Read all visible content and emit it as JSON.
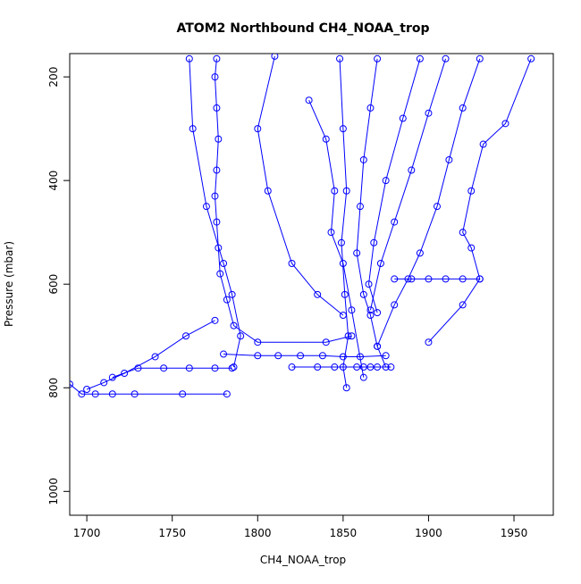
{
  "chart_data": {
    "type": "line",
    "title": "ATOM2 Northbound CH4_NOAA_trop",
    "x_label": "CH4_NOAA_trop",
    "y_label": "Pressure (mbar)",
    "color": "#0000ff",
    "markers": true,
    "xlim": [
      1690,
      1973
    ],
    "xticks": [
      1700,
      1750,
      1800,
      1850,
      1900,
      1950
    ],
    "ylim": [
      1046,
      155
    ],
    "yticks": [
      200,
      400,
      600,
      800,
      1000
    ],
    "series": [
      {
        "x": [
          1776,
          1775,
          1776,
          1777,
          1776,
          1775,
          1776,
          1777,
          1778,
          1782,
          1786,
          1800,
          1840,
          1855
        ],
        "values": [
          165,
          200,
          260,
          320,
          380,
          430,
          480,
          530,
          580,
          630,
          680,
          712,
          712,
          700
        ]
      },
      {
        "x": [
          1690,
          1697,
          1705,
          1715,
          1728,
          1756,
          1782
        ],
        "values": [
          793,
          812,
          812,
          812,
          812,
          812,
          812
        ]
      },
      {
        "x": [
          1700,
          1710,
          1722,
          1740,
          1758,
          1775
        ],
        "values": [
          803,
          790,
          772,
          740,
          700,
          670
        ]
      },
      {
        "x": [
          1715,
          1730,
          1745,
          1760,
          1775,
          1785
        ],
        "values": [
          780,
          762,
          762,
          762,
          762,
          762
        ]
      },
      {
        "x": [
          1760,
          1762,
          1770,
          1780,
          1785,
          1790,
          1786
        ],
        "values": [
          165,
          300,
          450,
          560,
          620,
          700,
          760
        ]
      },
      {
        "x": [
          1780,
          1800,
          1812,
          1825,
          1838,
          1850,
          1860,
          1875
        ],
        "values": [
          735,
          738,
          738,
          738,
          738,
          740,
          740,
          738
        ]
      },
      {
        "x": [
          1848,
          1850,
          1852,
          1849,
          1851,
          1853,
          1850,
          1852
        ],
        "values": [
          165,
          300,
          420,
          520,
          620,
          700,
          760,
          800
        ]
      },
      {
        "x": [
          1870,
          1866,
          1862,
          1860,
          1858,
          1862,
          1866,
          1870,
          1875
        ],
        "values": [
          165,
          260,
          360,
          450,
          540,
          620,
          660,
          720,
          760
        ]
      },
      {
        "x": [
          1930,
          1920,
          1912,
          1905,
          1895,
          1888,
          1880,
          1870
        ],
        "values": [
          165,
          260,
          360,
          450,
          540,
          590,
          640,
          720
        ]
      },
      {
        "x": [
          1960,
          1945,
          1932,
          1925,
          1920,
          1925,
          1930,
          1920,
          1900
        ],
        "values": [
          165,
          290,
          330,
          420,
          500,
          530,
          590,
          640,
          712
        ]
      },
      {
        "x": [
          1830,
          1840,
          1845,
          1843,
          1850,
          1855,
          1862
        ],
        "values": [
          245,
          320,
          420,
          500,
          560,
          650,
          780
        ]
      },
      {
        "x": [
          1895,
          1885,
          1875,
          1868,
          1865,
          1870
        ],
        "values": [
          165,
          280,
          400,
          520,
          600,
          655
        ]
      },
      {
        "x": [
          1820,
          1835,
          1845,
          1858,
          1862,
          1866,
          1870,
          1878
        ],
        "values": [
          760,
          760,
          760,
          760,
          760,
          760,
          760,
          760
        ]
      },
      {
        "x": [
          1880,
          1890,
          1900,
          1910,
          1920,
          1930
        ],
        "values": [
          590,
          590,
          590,
          590,
          590,
          590
        ]
      },
      {
        "x": [
          1810,
          1800,
          1806,
          1820,
          1835,
          1850
        ],
        "values": [
          160,
          300,
          420,
          560,
          620,
          660
        ]
      },
      {
        "x": [
          1910,
          1900,
          1890,
          1880,
          1872,
          1866
        ],
        "values": [
          165,
          270,
          380,
          480,
          560,
          650
        ]
      }
    ]
  }
}
